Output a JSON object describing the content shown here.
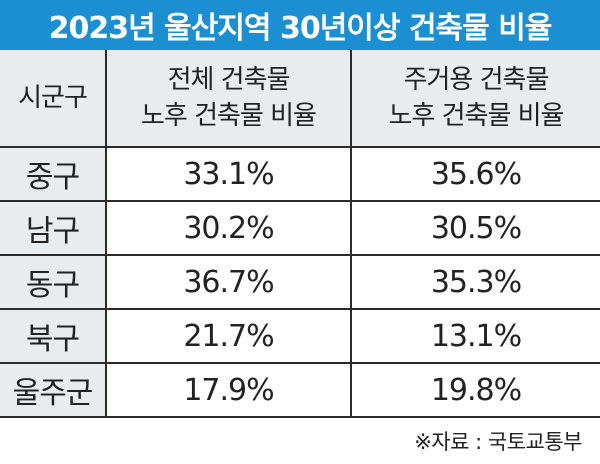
{
  "title": "2023년 울산지역 30년이상 건축물 비율",
  "chart_data": {
    "type": "table",
    "title": "2023년 울산지역 30년이상 건축물 비율",
    "columns": [
      "시군구",
      "전체 건축물 노후 건축물 비율",
      "주거용 건축물 노후 건축물 비율"
    ],
    "header": {
      "col1": "시군구",
      "col2_line1": "전체 건축물",
      "col2_line2": "노후 건축물 비율",
      "col3_line1": "주거용 건축물",
      "col3_line2": "노후 건축물 비율"
    },
    "rows": [
      {
        "region": "중구",
        "total": "33.1%",
        "residential": "35.6%"
      },
      {
        "region": "남구",
        "total": "30.2%",
        "residential": "30.5%"
      },
      {
        "region": "동구",
        "total": "36.7%",
        "residential": "35.3%"
      },
      {
        "region": "북구",
        "total": "21.7%",
        "residential": "13.1%"
      },
      {
        "region": "울주군",
        "total": "17.9%",
        "residential": "19.8%"
      }
    ]
  },
  "source": "※자료 : 국토교통부",
  "colors": {
    "title_bg": "#1b8fd2",
    "header_bg": "#e8ecef",
    "grid": "#2b2b2b"
  }
}
